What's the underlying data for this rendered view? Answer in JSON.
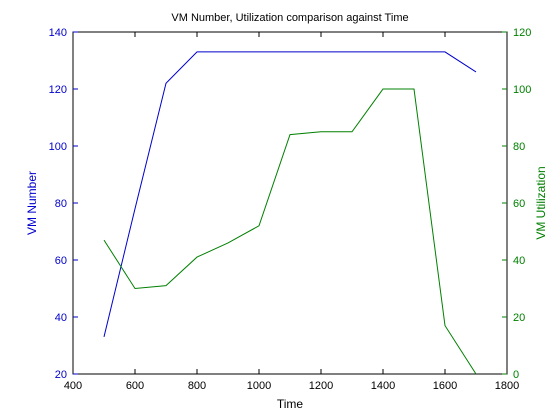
{
  "chart_data": {
    "type": "line",
    "title": "VM Number, Utilization comparison against Time",
    "xlabel": "Time",
    "ylabel_left": "VM Number",
    "ylabel_right": "VM Utilization",
    "xlim": [
      400,
      1800
    ],
    "ylim_left": [
      20,
      140
    ],
    "ylim_right": [
      0,
      120
    ],
    "x_ticks": [
      "400",
      "600",
      "800",
      "1000",
      "1200",
      "1400",
      "1600",
      "1800"
    ],
    "y_left_ticks": [
      "20",
      "40",
      "60",
      "80",
      "100",
      "120",
      "140"
    ],
    "y_right_ticks": [
      "0",
      "20",
      "40",
      "60",
      "80",
      "100",
      "120"
    ],
    "grid": false,
    "series": [
      {
        "name": "VM Number",
        "axis": "left",
        "color": "#0000cc",
        "x": [
          500,
          600,
          700,
          800,
          900,
          1000,
          1100,
          1200,
          1300,
          1400,
          1500,
          1600,
          1700
        ],
        "values": [
          33,
          78,
          122,
          133,
          133,
          133,
          133,
          133,
          133,
          133,
          133,
          133,
          126
        ]
      },
      {
        "name": "VM Utilization",
        "axis": "right",
        "color": "#008000",
        "x": [
          500,
          600,
          700,
          800,
          900,
          1000,
          1100,
          1200,
          1300,
          1400,
          1500,
          1600,
          1700
        ],
        "values": [
          47,
          30,
          31,
          41,
          46,
          52,
          84,
          85,
          85,
          100,
          100,
          17,
          0
        ]
      }
    ]
  }
}
